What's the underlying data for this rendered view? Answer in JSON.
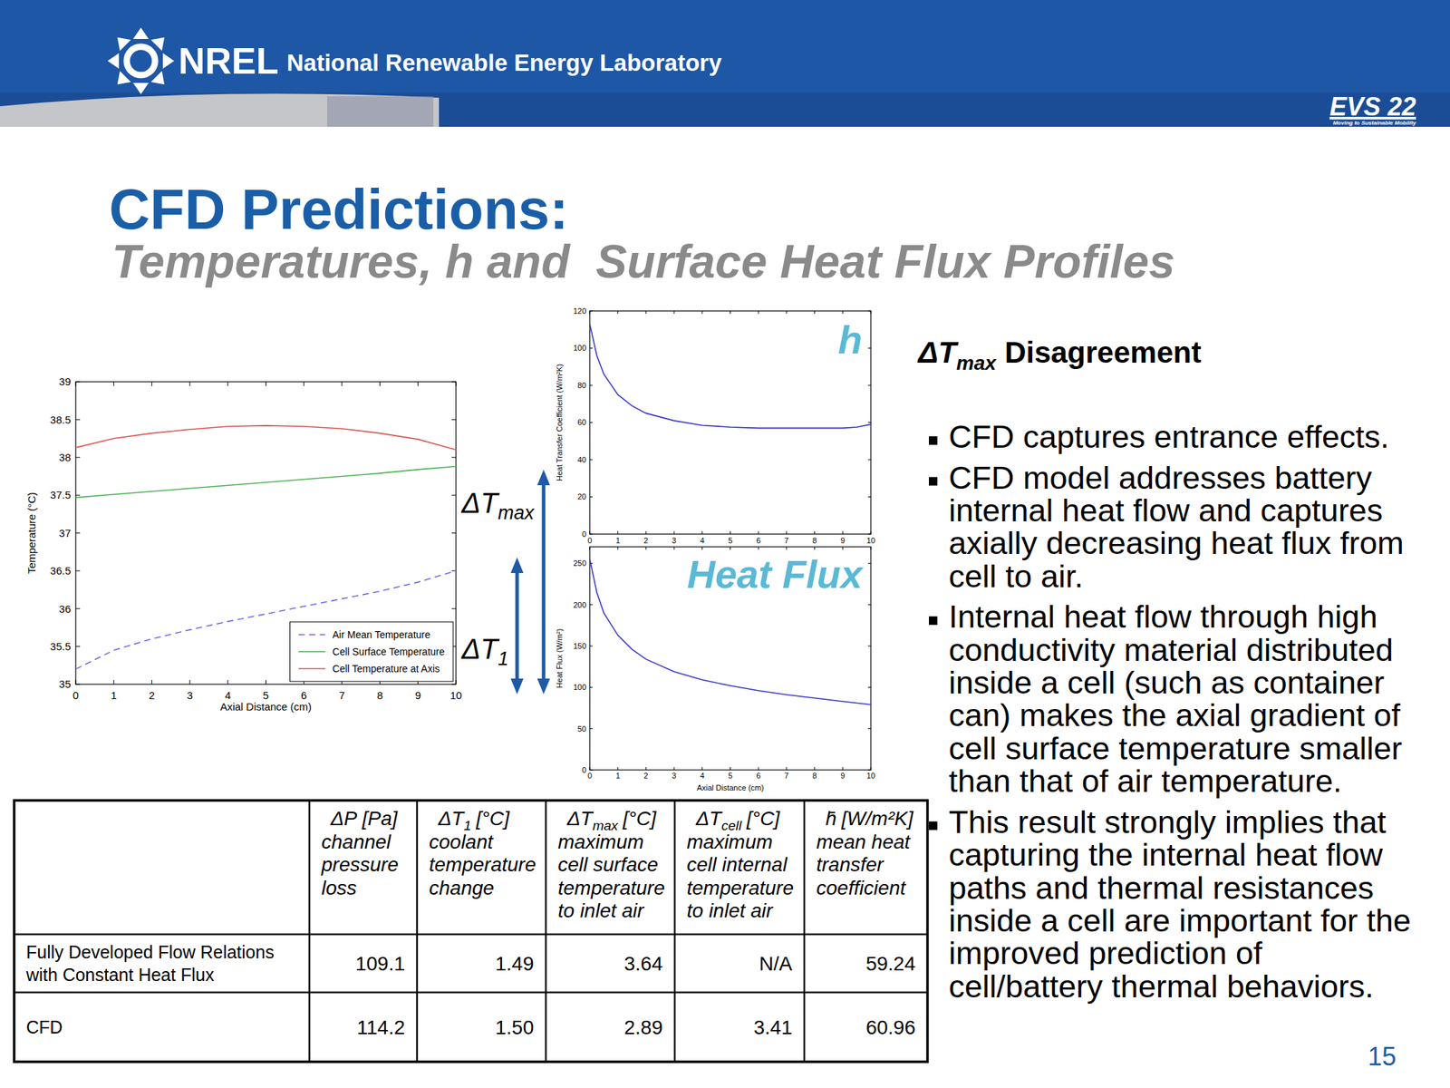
{
  "header": {
    "logo": "NREL",
    "organization": "National Renewable Energy Laboratory",
    "event": "EVS 22",
    "tagline": "Moving to Sustainable Mobility"
  },
  "title": "CFD Predictions:",
  "subtitle": "Temperatures, h and  Surface Heat Flux Profiles",
  "chart_data": [
    {
      "type": "line",
      "x": [
        0,
        1,
        2,
        3,
        4,
        5,
        6,
        7,
        8,
        9,
        10
      ],
      "xlim": [
        0,
        10
      ],
      "ylim": [
        35,
        39
      ],
      "xticks": [
        0,
        1,
        2,
        3,
        4,
        5,
        6,
        7,
        8,
        9,
        10
      ],
      "yticks": [
        35,
        35.5,
        36,
        36.5,
        37,
        37.5,
        38,
        38.5,
        39
      ],
      "xlabel": "Axial Distance (cm)",
      "ylabel": "Temperature (°C)",
      "legend": "lower right",
      "series": [
        {
          "name": "Air Mean Temperature",
          "color": "#6a6ae6",
          "line_style": "dashed",
          "values": [
            35.2,
            35.45,
            35.6,
            35.72,
            35.83,
            35.93,
            36.03,
            36.13,
            36.23,
            36.35,
            36.5
          ]
        },
        {
          "name": "Cell Surface Temperature",
          "color": "#4caf50",
          "line_style": "solid",
          "values": [
            37.47,
            37.51,
            37.55,
            37.59,
            37.63,
            37.67,
            37.71,
            37.75,
            37.79,
            37.84,
            37.88
          ]
        },
        {
          "name": "Cell Temperature at Axis",
          "color": "#d9534f",
          "line_style": "solid",
          "values": [
            38.13,
            38.25,
            38.32,
            38.37,
            38.41,
            38.42,
            38.41,
            38.38,
            38.32,
            38.24,
            38.1
          ]
        }
      ],
      "annotations": [
        {
          "text": "ΔT",
          "subscript": "max"
        },
        {
          "text": "ΔT",
          "subscript": "1"
        }
      ]
    },
    {
      "type": "line",
      "x": [
        0,
        0.25,
        0.5,
        1,
        1.5,
        2,
        3,
        4,
        5,
        6,
        7,
        8,
        9,
        9.5,
        10
      ],
      "values": [
        113,
        96,
        86,
        75,
        69,
        65,
        61,
        58.5,
        57.5,
        57,
        57,
        57,
        57,
        57.5,
        59
      ],
      "color": "#3333cc",
      "line_style": "solid",
      "xlim": [
        0,
        10
      ],
      "ylim": [
        0,
        120
      ],
      "xticks": [
        0,
        1,
        2,
        3,
        4,
        5,
        6,
        7,
        8,
        9,
        10
      ],
      "yticks": [
        0,
        20,
        40,
        60,
        80,
        100,
        120
      ],
      "ylabel": "Heat Transfer Coefficient (W/m²K)",
      "annotations": [
        {
          "text": "h"
        }
      ]
    },
    {
      "type": "line",
      "x": [
        0,
        0.25,
        0.5,
        1,
        1.5,
        2,
        3,
        4,
        5,
        6,
        7,
        8,
        9,
        10
      ],
      "values": [
        255,
        215,
        190,
        163,
        146,
        134,
        119,
        109,
        102,
        96,
        91,
        87,
        83,
        79
      ],
      "color": "#3333cc",
      "line_style": "solid",
      "xlim": [
        0,
        10
      ],
      "ylim": [
        0,
        270
      ],
      "xticks": [
        0,
        1,
        2,
        3,
        4,
        5,
        6,
        7,
        8,
        9,
        10
      ],
      "yticks": [
        0,
        50,
        100,
        150,
        200,
        250
      ],
      "xlabel": "Axial Distance (cm)",
      "ylabel": "Heat Flux (W/m²)",
      "annotations": [
        {
          "text": "Heat Flux"
        }
      ]
    }
  ],
  "sidebar": {
    "heading": {
      "symbol": "ΔT",
      "subscript": "max",
      "text": "Disagreement"
    },
    "bullets": [
      "CFD captures entrance effects.",
      "CFD model addresses battery internal heat flow and captures axially decreasing heat flux from cell to air.",
      "Internal heat flow through high conductivity material distributed inside a cell (such as container can) makes the axial gradient of cell surface temperature smaller than that of air temperature.",
      "This result strongly implies that capturing the internal heat flow paths and thermal resistances inside a cell are important for the improved prediction of cell/battery thermal behaviors."
    ]
  },
  "table": {
    "columns": [
      {
        "symbol": "ΔP",
        "unit": "[Pa]",
        "description": "channel pressure loss"
      },
      {
        "symbol": "ΔT",
        "subscript": "1",
        "unit": "[°C]",
        "description": "coolant temperature change"
      },
      {
        "symbol": "ΔT",
        "subscript": "max",
        "unit": "[°C]",
        "description": "maximum cell surface temperature to inlet air"
      },
      {
        "symbol": "ΔT",
        "subscript": "cell",
        "unit": "[°C]",
        "description": "maximum cell internal temperature to inlet air"
      },
      {
        "symbol": "h̄",
        "unit": "[W/m²K]",
        "description": "mean heat transfer coefficient"
      }
    ],
    "rows": [
      {
        "label": "Fully Developed Flow Relations with Constant Heat Flux",
        "cells": [
          "109.1",
          "1.49",
          "3.64",
          "N/A",
          "59.24"
        ]
      },
      {
        "label": "CFD",
        "cells": [
          "114.2",
          "1.50",
          "2.89",
          "3.41",
          "60.96"
        ]
      }
    ]
  },
  "page_number": "15"
}
